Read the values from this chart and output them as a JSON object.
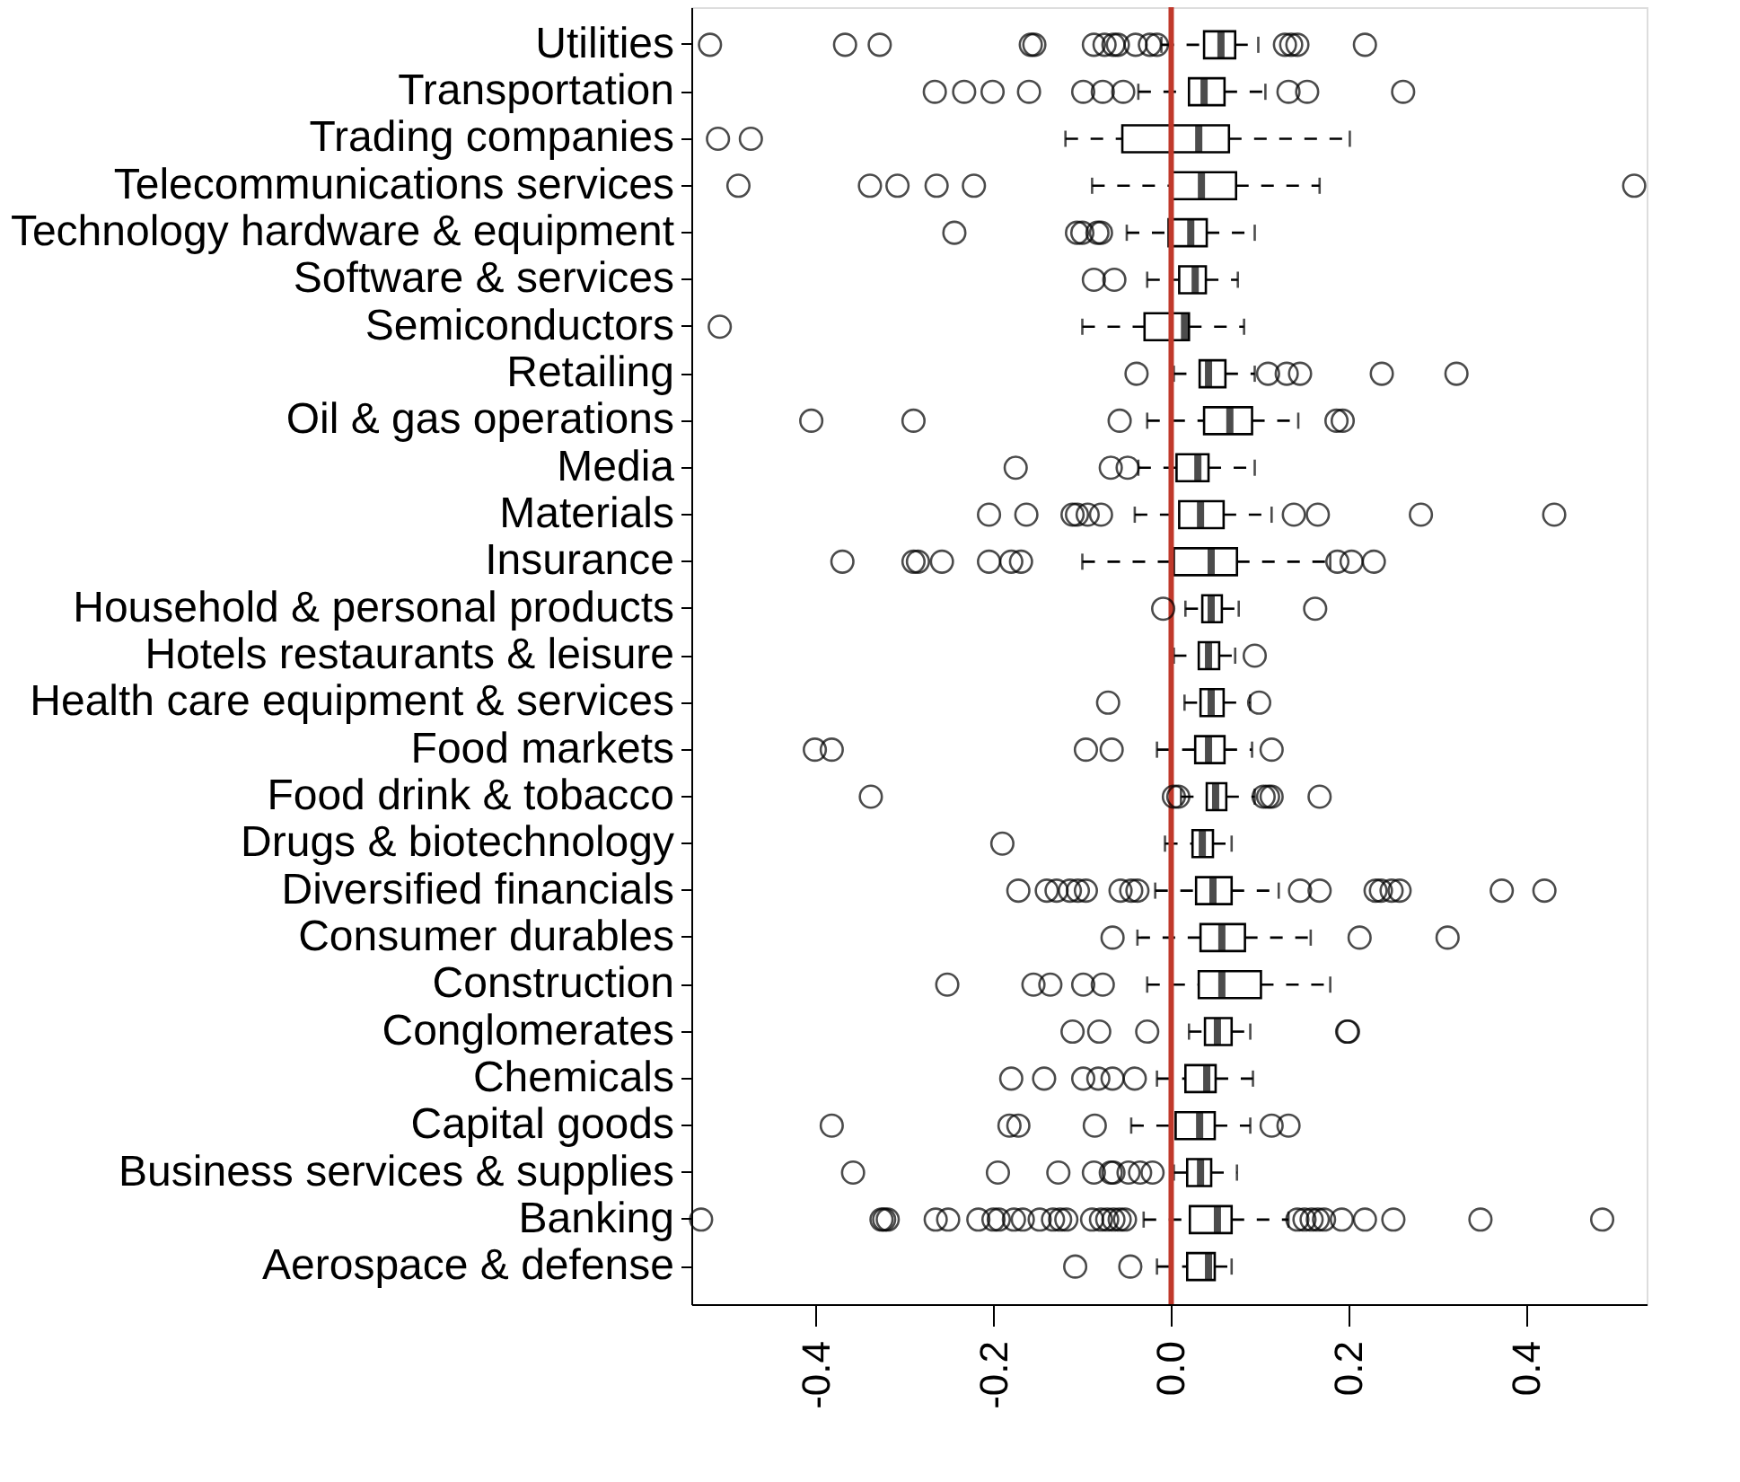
{
  "chart_data": {
    "type": "box",
    "orientation": "horizontal",
    "categories": [
      "Utilities",
      "Transportation",
      "Trading companies",
      "Telecommunications services",
      "Technology hardware & equipment",
      "Software & services",
      "Semiconductors",
      "Retailing",
      "Oil & gas operations",
      "Media",
      "Materials",
      "Insurance",
      "Household & personal products",
      "Hotels restaurants & leisure",
      "Health care equipment & services",
      "Food markets",
      "Food drink & tobacco",
      "Drugs & biotechnology",
      "Diversified financials",
      "Consumer durables",
      "Construction",
      "Conglomerates",
      "Chemicals",
      "Capital goods",
      "Business services & supplies",
      "Banking",
      "Aerospace & defense"
    ],
    "boxes": [
      {
        "low": -0.011,
        "q1": 0.037,
        "median": 0.056,
        "q3": 0.072,
        "high": 0.098,
        "outliers": [
          -0.519,
          -0.367,
          -0.328,
          -0.158,
          -0.154,
          -0.087,
          -0.075,
          -0.065,
          -0.06,
          -0.04,
          -0.024,
          -0.016,
          0.128,
          0.135,
          0.142,
          0.218
        ]
      },
      {
        "low": -0.037,
        "q1": 0.02,
        "median": 0.037,
        "q3": 0.06,
        "high": 0.106,
        "outliers": [
          -0.266,
          -0.233,
          -0.201,
          -0.16,
          -0.099,
          -0.077,
          -0.054,
          0.132,
          0.153,
          0.261
        ]
      },
      {
        "low": -0.119,
        "q1": -0.055,
        "median": 0.031,
        "q3": 0.065,
        "high": 0.201,
        "outliers": [
          -0.51,
          -0.473
        ]
      },
      {
        "low": -0.089,
        "q1": 0.001,
        "median": 0.034,
        "q3": 0.073,
        "high": 0.167,
        "outliers": [
          -0.487,
          -0.339,
          -0.308,
          -0.264,
          -0.222,
          0.521
        ]
      },
      {
        "low": -0.05,
        "q1": -0.003,
        "median": 0.022,
        "q3": 0.04,
        "high": 0.094,
        "outliers": [
          -0.244,
          -0.106,
          -0.1,
          -0.083,
          -0.079
        ]
      },
      {
        "low": -0.027,
        "q1": 0.009,
        "median": 0.027,
        "q3": 0.039,
        "high": 0.075,
        "outliers": [
          -0.087,
          -0.064
        ]
      },
      {
        "low": -0.1,
        "q1": -0.03,
        "median": 0.015,
        "q3": 0.02,
        "high": 0.082,
        "outliers": [
          -0.508
        ]
      },
      {
        "low": 0.003,
        "q1": 0.032,
        "median": 0.042,
        "q3": 0.061,
        "high": 0.094,
        "outliers": [
          -0.039,
          0.109,
          0.13,
          0.145,
          0.237,
          0.321
        ]
      },
      {
        "low": -0.027,
        "q1": 0.037,
        "median": 0.066,
        "q3": 0.091,
        "high": 0.143,
        "outliers": [
          -0.405,
          -0.29,
          -0.058,
          0.186,
          0.193
        ]
      },
      {
        "low": -0.037,
        "q1": 0.006,
        "median": 0.03,
        "q3": 0.042,
        "high": 0.094,
        "outliers": [
          -0.175,
          -0.068,
          -0.049
        ]
      },
      {
        "low": -0.041,
        "q1": 0.009,
        "median": 0.033,
        "q3": 0.059,
        "high": 0.113,
        "outliers": [
          -0.205,
          -0.163,
          -0.111,
          -0.106,
          -0.094,
          -0.079,
          0.138,
          0.165,
          0.281,
          0.431
        ]
      },
      {
        "low": -0.1,
        "q1": 0.003,
        "median": 0.045,
        "q3": 0.074,
        "high": 0.179,
        "outliers": [
          -0.37,
          -0.29,
          -0.285,
          -0.258,
          -0.205,
          -0.18,
          -0.169,
          0.187,
          0.203,
          0.228
        ]
      },
      {
        "low": 0.016,
        "q1": 0.035,
        "median": 0.045,
        "q3": 0.057,
        "high": 0.076,
        "outliers": [
          -0.009,
          0.162
        ]
      },
      {
        "low": 0.003,
        "q1": 0.031,
        "median": 0.042,
        "q3": 0.054,
        "high": 0.072,
        "outliers": [
          0.094
        ]
      },
      {
        "low": 0.015,
        "q1": 0.033,
        "median": 0.045,
        "q3": 0.059,
        "high": 0.089,
        "outliers": [
          -0.071,
          0.099
        ]
      },
      {
        "low": -0.016,
        "q1": 0.027,
        "median": 0.042,
        "q3": 0.06,
        "high": 0.091,
        "outliers": [
          -0.401,
          -0.382,
          -0.096,
          -0.067,
          0.113
        ]
      },
      {
        "low": 0.011,
        "q1": 0.04,
        "median": 0.05,
        "q3": 0.062,
        "high": 0.094,
        "outliers": [
          -0.338,
          0.003,
          0.008,
          0.104,
          0.109,
          0.113,
          0.167
        ]
      },
      {
        "low": -0.007,
        "q1": 0.024,
        "median": 0.035,
        "q3": 0.047,
        "high": 0.068,
        "outliers": [
          -0.19
        ]
      },
      {
        "low": -0.018,
        "q1": 0.028,
        "median": 0.047,
        "q3": 0.068,
        "high": 0.121,
        "outliers": [
          -0.172,
          -0.14,
          -0.129,
          -0.114,
          -0.105,
          -0.096,
          -0.057,
          -0.045,
          -0.038,
          0.145,
          0.167,
          0.23,
          0.236,
          0.248,
          0.257,
          0.372,
          0.42
        ]
      },
      {
        "low": -0.038,
        "q1": 0.033,
        "median": 0.057,
        "q3": 0.083,
        "high": 0.157,
        "outliers": [
          -0.066,
          0.212,
          0.311
        ]
      },
      {
        "low": -0.027,
        "q1": 0.031,
        "median": 0.057,
        "q3": 0.101,
        "high": 0.179,
        "outliers": [
          -0.252,
          -0.155,
          -0.136,
          -0.099,
          -0.077
        ]
      },
      {
        "low": 0.02,
        "q1": 0.038,
        "median": 0.052,
        "q3": 0.068,
        "high": 0.089,
        "outliers": [
          -0.111,
          -0.081,
          -0.027,
          0.198,
          0.199
        ]
      },
      {
        "low": -0.016,
        "q1": 0.016,
        "median": 0.04,
        "q3": 0.05,
        "high": 0.092,
        "outliers": [
          -0.18,
          -0.143,
          -0.099,
          -0.082,
          -0.066,
          -0.041
        ]
      },
      {
        "low": -0.045,
        "q1": 0.005,
        "median": 0.032,
        "q3": 0.049,
        "high": 0.089,
        "outliers": [
          -0.382,
          -0.182,
          -0.172,
          -0.086,
          0.113,
          0.132
        ]
      },
      {
        "low": 0.003,
        "q1": 0.018,
        "median": 0.033,
        "q3": 0.045,
        "high": 0.074,
        "outliers": [
          -0.358,
          -0.195,
          -0.127,
          -0.087,
          -0.068,
          -0.065,
          -0.048,
          -0.035,
          -0.021
        ]
      },
      {
        "low": -0.031,
        "q1": 0.021,
        "median": 0.052,
        "q3": 0.068,
        "high": 0.132,
        "outliers": [
          -0.529,
          -0.326,
          -0.323,
          -0.319,
          -0.265,
          -0.251,
          -0.217,
          -0.2,
          -0.194,
          -0.177,
          -0.167,
          -0.148,
          -0.133,
          -0.125,
          -0.118,
          -0.089,
          -0.079,
          -0.072,
          -0.065,
          -0.058,
          -0.052,
          0.142,
          0.15,
          0.158,
          0.165,
          0.172,
          0.192,
          0.218,
          0.25,
          0.348,
          0.485
        ]
      },
      {
        "low": -0.016,
        "q1": 0.018,
        "median": 0.042,
        "q3": 0.049,
        "high": 0.068,
        "outliers": [
          -0.108,
          -0.046
        ]
      }
    ],
    "xlim": [
      -0.54,
      0.535
    ],
    "xticks": [
      {
        "value": -0.4,
        "label": "-0.4"
      },
      {
        "value": -0.2,
        "label": "-0.2"
      },
      {
        "value": 0,
        "label": "0.0"
      },
      {
        "value": 0.2,
        "label": "0.2"
      },
      {
        "value": 0.4,
        "label": "0.4"
      }
    ],
    "ref_lines": [
      {
        "axis": "x",
        "value": 0,
        "label": null,
        "color": "#c0392b"
      }
    ],
    "grid": false
  }
}
